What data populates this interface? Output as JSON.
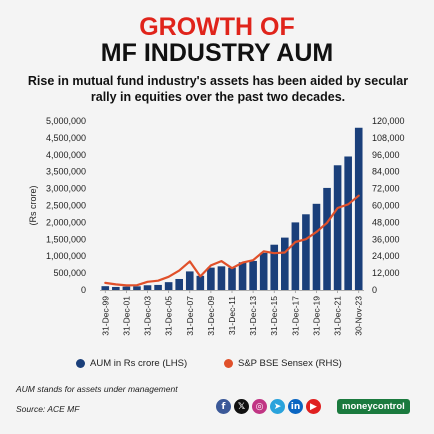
{
  "header": {
    "title_line1": "GROWTH OF",
    "title_line2": "MF INDUSTRY AUM",
    "subtitle": "Rise in mutual fund industry's assets has been aided by secular rally in equities over the past two decades."
  },
  "chart_data": {
    "type": "bar",
    "ylabel": "(Rs crore)",
    "categories": [
      "31-Dec-99",
      "31-Dec-00",
      "31-Dec-01",
      "31-Dec-02",
      "31-Dec-03",
      "31-Dec-04",
      "31-Dec-05",
      "31-Dec-06",
      "31-Dec-07",
      "31-Dec-08",
      "31-Dec-09",
      "31-Dec-10",
      "31-Dec-11",
      "31-Dec-12",
      "31-Dec-13",
      "31-Dec-14",
      "31-Dec-15",
      "31-Dec-16",
      "31-Dec-17",
      "31-Dec-18",
      "31-Dec-19",
      "31-Dec-20",
      "31-Dec-21",
      "31-Dec-22",
      "30-Nov-23"
    ],
    "tick_labels": [
      "31-Dec-99",
      "31-Dec-01",
      "31-Dec-03",
      "31-Dec-05",
      "31-Dec-07",
      "31-Dec-09",
      "31-Dec-11",
      "31-Dec-13",
      "31-Dec-15",
      "31-Dec-17",
      "31-Dec-19",
      "31-Dec-21",
      "30-Nov-23"
    ],
    "series": [
      {
        "name": "AUM in Rs crore (LHS)",
        "axis": "left",
        "kind": "bar",
        "color": "#1a3f7a",
        "values": [
          113000,
          90000,
          100000,
          109000,
          140000,
          150000,
          232000,
          326000,
          550000,
          420000,
          662000,
          700000,
          660000,
          820000,
          860000,
          1100000,
          1340000,
          1550000,
          2000000,
          2240000,
          2550000,
          3020000,
          3690000,
          3950000,
          4800000
        ]
      },
      {
        "name": "S&P BSE Sensex (RHS)",
        "axis": "right",
        "kind": "line",
        "color": "#e0502a",
        "values": [
          5006,
          3972,
          3262,
          3377,
          5839,
          6603,
          9398,
          13787,
          20287,
          9647,
          17465,
          20509,
          15455,
          19427,
          21171,
          27499,
          26118,
          26626,
          34057,
          36068,
          41254,
          47751,
          58254,
          60841,
          66988
        ]
      }
    ],
    "ylim_left": [
      0,
      5000000
    ],
    "yticks_left": [
      "0",
      "500,000",
      "1,000,000",
      "1,500,000",
      "2,000,000",
      "2,500,000",
      "3,000,000",
      "3,500,000",
      "4,000,000",
      "4,500,000",
      "5,000,000"
    ],
    "ylim_right": [
      0,
      120000
    ],
    "yticks_right": [
      "0",
      "12,000",
      "24,000",
      "36,000",
      "48,000",
      "60,000",
      "72,000",
      "84,000",
      "96,000",
      "108,000",
      "120,000"
    ],
    "grid": false,
    "legend_placement": "bottom"
  },
  "footer": {
    "note": "AUM stands for assets under management",
    "source": "Source: ACE MF",
    "social_icons": [
      {
        "icon": "facebook-icon",
        "glyph": "f",
        "color": "#3b5998"
      },
      {
        "icon": "x-icon",
        "glyph": "𝕏",
        "color": "#111111"
      },
      {
        "icon": "instagram-icon",
        "glyph": "◎",
        "color": "#c13584"
      },
      {
        "icon": "telegram-icon",
        "glyph": "➤",
        "color": "#2aa3dc"
      },
      {
        "icon": "linkedin-icon",
        "glyph": "in",
        "color": "#0a66c2"
      },
      {
        "icon": "youtube-icon",
        "glyph": "▶",
        "color": "#e02020"
      }
    ],
    "brand": "moneycontrol"
  }
}
